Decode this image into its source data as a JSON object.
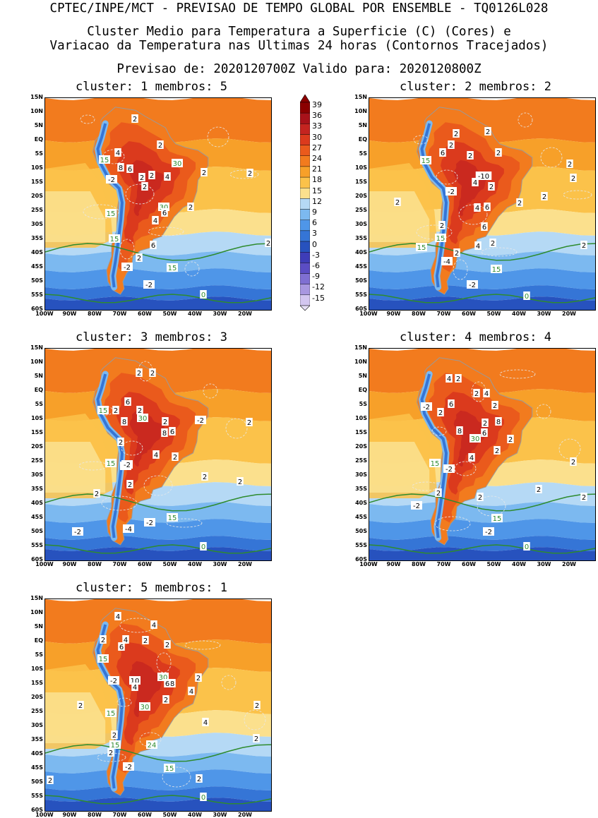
{
  "header": {
    "line1": "CPTEC/INPE/MCT - PREVISAO DE TEMPO GLOBAL POR ENSEMBLE - TQ0126L028",
    "line2": "Cluster Medio para Temperatura a Superficie (C) (Cores) e",
    "line3": "Variacao da Temperatura nas Ultimas 24 horas (Contornos Tracejados)",
    "line4": "Previsao de: 2020120700Z    Valido para: 2020120800Z"
  },
  "axes": {
    "lat_labels": [
      "15N",
      "10N",
      "5N",
      "EQ",
      "5S",
      "10S",
      "15S",
      "20S",
      "25S",
      "30S",
      "35S",
      "40S",
      "45S",
      "50S",
      "55S",
      "60S"
    ],
    "lon_labels": [
      "100W",
      "90W",
      "80W",
      "70W",
      "60W",
      "50W",
      "40W",
      "30W",
      "20W"
    ]
  },
  "colorbar": {
    "labels": [
      "39",
      "36",
      "33",
      "30",
      "27",
      "24",
      "21",
      "18",
      "15",
      "12",
      "9",
      "6",
      "3",
      "0",
      "-3",
      "-6",
      "-9",
      "-12",
      "-15"
    ],
    "colors": [
      "#8b0000",
      "#a8121a",
      "#c42420",
      "#db3a1d",
      "#ea5a1c",
      "#f27b1e",
      "#f7a029",
      "#fbc24a",
      "#fbe08d",
      "#b5d9f5",
      "#7cb9f0",
      "#4f96e8",
      "#3575d6",
      "#2752be",
      "#3e3db8",
      "#5b4dc4",
      "#7f6fd2",
      "#a897e0",
      "#d3c6f0"
    ]
  },
  "panels": [
    {
      "id": "c1",
      "title": "cluster: 1   membros: 5",
      "labels": [
        [
          "2",
          190,
          167
        ],
        [
          "4",
          166,
          215
        ],
        [
          "2",
          226,
          204
        ],
        [
          "8",
          170,
          236
        ],
        [
          "6",
          183,
          238
        ],
        [
          "30",
          250,
          230
        ],
        [
          "2",
          200,
          250
        ],
        [
          "4",
          236,
          249
        ],
        [
          "2",
          214,
          247
        ],
        [
          "2",
          288,
          243
        ],
        [
          "2",
          353,
          244
        ],
        [
          "-2",
          157,
          253
        ],
        [
          "2",
          204,
          263
        ],
        [
          "30",
          231,
          292
        ],
        [
          "2",
          269,
          292
        ],
        [
          "6",
          232,
          300
        ],
        [
          "4",
          219,
          311
        ],
        [
          "15",
          147,
          225
        ],
        [
          "15",
          156,
          301
        ],
        [
          "15",
          161,
          337
        ],
        [
          "6",
          216,
          346
        ],
        [
          "2",
          196,
          364
        ],
        [
          "-2",
          179,
          377
        ],
        [
          "15",
          243,
          378
        ],
        [
          "-2",
          210,
          402
        ],
        [
          "2",
          379,
          343
        ],
        [
          "0",
          287,
          416
        ]
      ]
    },
    {
      "id": "c2",
      "title": "cluster: 2   membros: 2",
      "labels": [
        [
          "2",
          645,
          188
        ],
        [
          "2",
          690,
          185
        ],
        [
          "2",
          638,
          204
        ],
        [
          "6",
          626,
          215
        ],
        [
          "2",
          665,
          219
        ],
        [
          "2",
          705,
          215
        ],
        [
          "-10",
          684,
          248
        ],
        [
          "4",
          672,
          257
        ],
        [
          "2",
          695,
          263
        ],
        [
          "15",
          602,
          226
        ],
        [
          "-2",
          638,
          270
        ],
        [
          "2",
          562,
          285
        ],
        [
          "4",
          675,
          293
        ],
        [
          "6",
          689,
          292
        ],
        [
          "2",
          735,
          286
        ],
        [
          "2",
          770,
          277
        ],
        [
          "2",
          806,
          231
        ],
        [
          "2",
          811,
          251
        ],
        [
          "2",
          625,
          318
        ],
        [
          "6",
          685,
          320
        ],
        [
          "15",
          623,
          336
        ],
        [
          "15",
          596,
          349
        ],
        [
          "2",
          646,
          357
        ],
        [
          "4",
          676,
          347
        ],
        [
          "2",
          697,
          343
        ],
        [
          "-4",
          632,
          369
        ],
        [
          "15",
          702,
          380
        ],
        [
          "-2",
          668,
          402
        ],
        [
          "0",
          745,
          418
        ],
        [
          "2",
          826,
          346
        ]
      ]
    },
    {
      "id": "c3",
      "title": "cluster: 3   membros: 3",
      "labels": [
        [
          "2",
          196,
          527
        ],
        [
          "2",
          215,
          527
        ],
        [
          "6",
          180,
          568
        ],
        [
          "2",
          163,
          580
        ],
        [
          "2",
          197,
          580
        ],
        [
          "8",
          175,
          596
        ],
        [
          "30",
          201,
          591
        ],
        [
          "15",
          145,
          580
        ],
        [
          "2",
          233,
          596
        ],
        [
          "8",
          232,
          612
        ],
        [
          "6",
          243,
          610
        ],
        [
          "-2",
          283,
          594
        ],
        [
          "2",
          352,
          597
        ],
        [
          "2",
          170,
          625
        ],
        [
          "4",
          220,
          643
        ],
        [
          "2",
          247,
          646
        ],
        [
          "15",
          156,
          655
        ],
        [
          "-2",
          177,
          659
        ],
        [
          "-2",
          179,
          657
        ],
        [
          "2",
          183,
          685
        ],
        [
          "2",
          289,
          674
        ],
        [
          "2",
          339,
          681
        ],
        [
          "2",
          136,
          698
        ],
        [
          "-4",
          181,
          748
        ],
        [
          "-2",
          211,
          739
        ],
        [
          "15",
          243,
          732
        ],
        [
          "-2",
          109,
          752
        ],
        [
          "0",
          287,
          773
        ]
      ]
    },
    {
      "id": "c4",
      "title": "cluster: 4   membros: 4",
      "labels": [
        [
          "4",
          635,
          535
        ],
        [
          "2",
          648,
          535
        ],
        [
          "2",
          674,
          556
        ],
        [
          "4",
          688,
          556
        ],
        [
          "2",
          700,
          573
        ],
        [
          "6",
          638,
          571
        ],
        [
          "-2",
          603,
          575
        ],
        [
          "2",
          623,
          583
        ],
        [
          "8",
          705,
          596
        ],
        [
          "2",
          686,
          598
        ],
        [
          "8",
          650,
          609
        ],
        [
          "6",
          685,
          612
        ],
        [
          "30",
          672,
          620
        ],
        [
          "2",
          722,
          621
        ],
        [
          "2",
          703,
          637
        ],
        [
          "4",
          667,
          647
        ],
        [
          "15",
          615,
          655
        ],
        [
          "-2",
          635,
          663
        ],
        [
          "2",
          811,
          653
        ],
        [
          "2",
          620,
          697
        ],
        [
          "2",
          679,
          703
        ],
        [
          "2",
          762,
          692
        ],
        [
          "-2",
          589,
          715
        ],
        [
          "15",
          703,
          733
        ],
        [
          "-2",
          691,
          752
        ],
        [
          "2",
          826,
          703
        ],
        [
          "0",
          745,
          773
        ]
      ]
    },
    {
      "id": "c5",
      "title": "cluster: 5   membros: 1",
      "labels": [
        [
          "4",
          166,
          872
        ],
        [
          "4",
          217,
          884
        ],
        [
          "2",
          145,
          905
        ],
        [
          "4",
          177,
          905
        ],
        [
          "2",
          205,
          906
        ],
        [
          "6",
          171,
          915
        ],
        [
          "2",
          236,
          912
        ],
        [
          "15",
          145,
          932
        ],
        [
          "-2",
          160,
          963
        ],
        [
          "10",
          190,
          963
        ],
        [
          "4",
          190,
          972
        ],
        [
          "30",
          230,
          958
        ],
        [
          "8",
          243,
          967
        ],
        [
          "6",
          236,
          967
        ],
        [
          "2",
          280,
          959
        ],
        [
          "4",
          270,
          978
        ],
        [
          "2",
          234,
          990
        ],
        [
          "30",
          204,
          1000
        ],
        [
          "2",
          113,
          998
        ],
        [
          "15",
          156,
          1009
        ],
        [
          "2",
          363,
          998
        ],
        [
          "4",
          290,
          1022
        ],
        [
          "2",
          161,
          1040
        ],
        [
          "15",
          162,
          1054
        ],
        [
          "2",
          156,
          1065
        ],
        [
          "24",
          214,
          1054
        ],
        [
          "2",
          362,
          1045
        ],
        [
          "-2",
          181,
          1085
        ],
        [
          "15",
          239,
          1087
        ],
        [
          "2",
          70,
          1104
        ],
        [
          "2",
          281,
          1102
        ],
        [
          "0",
          287,
          1128
        ]
      ]
    }
  ]
}
